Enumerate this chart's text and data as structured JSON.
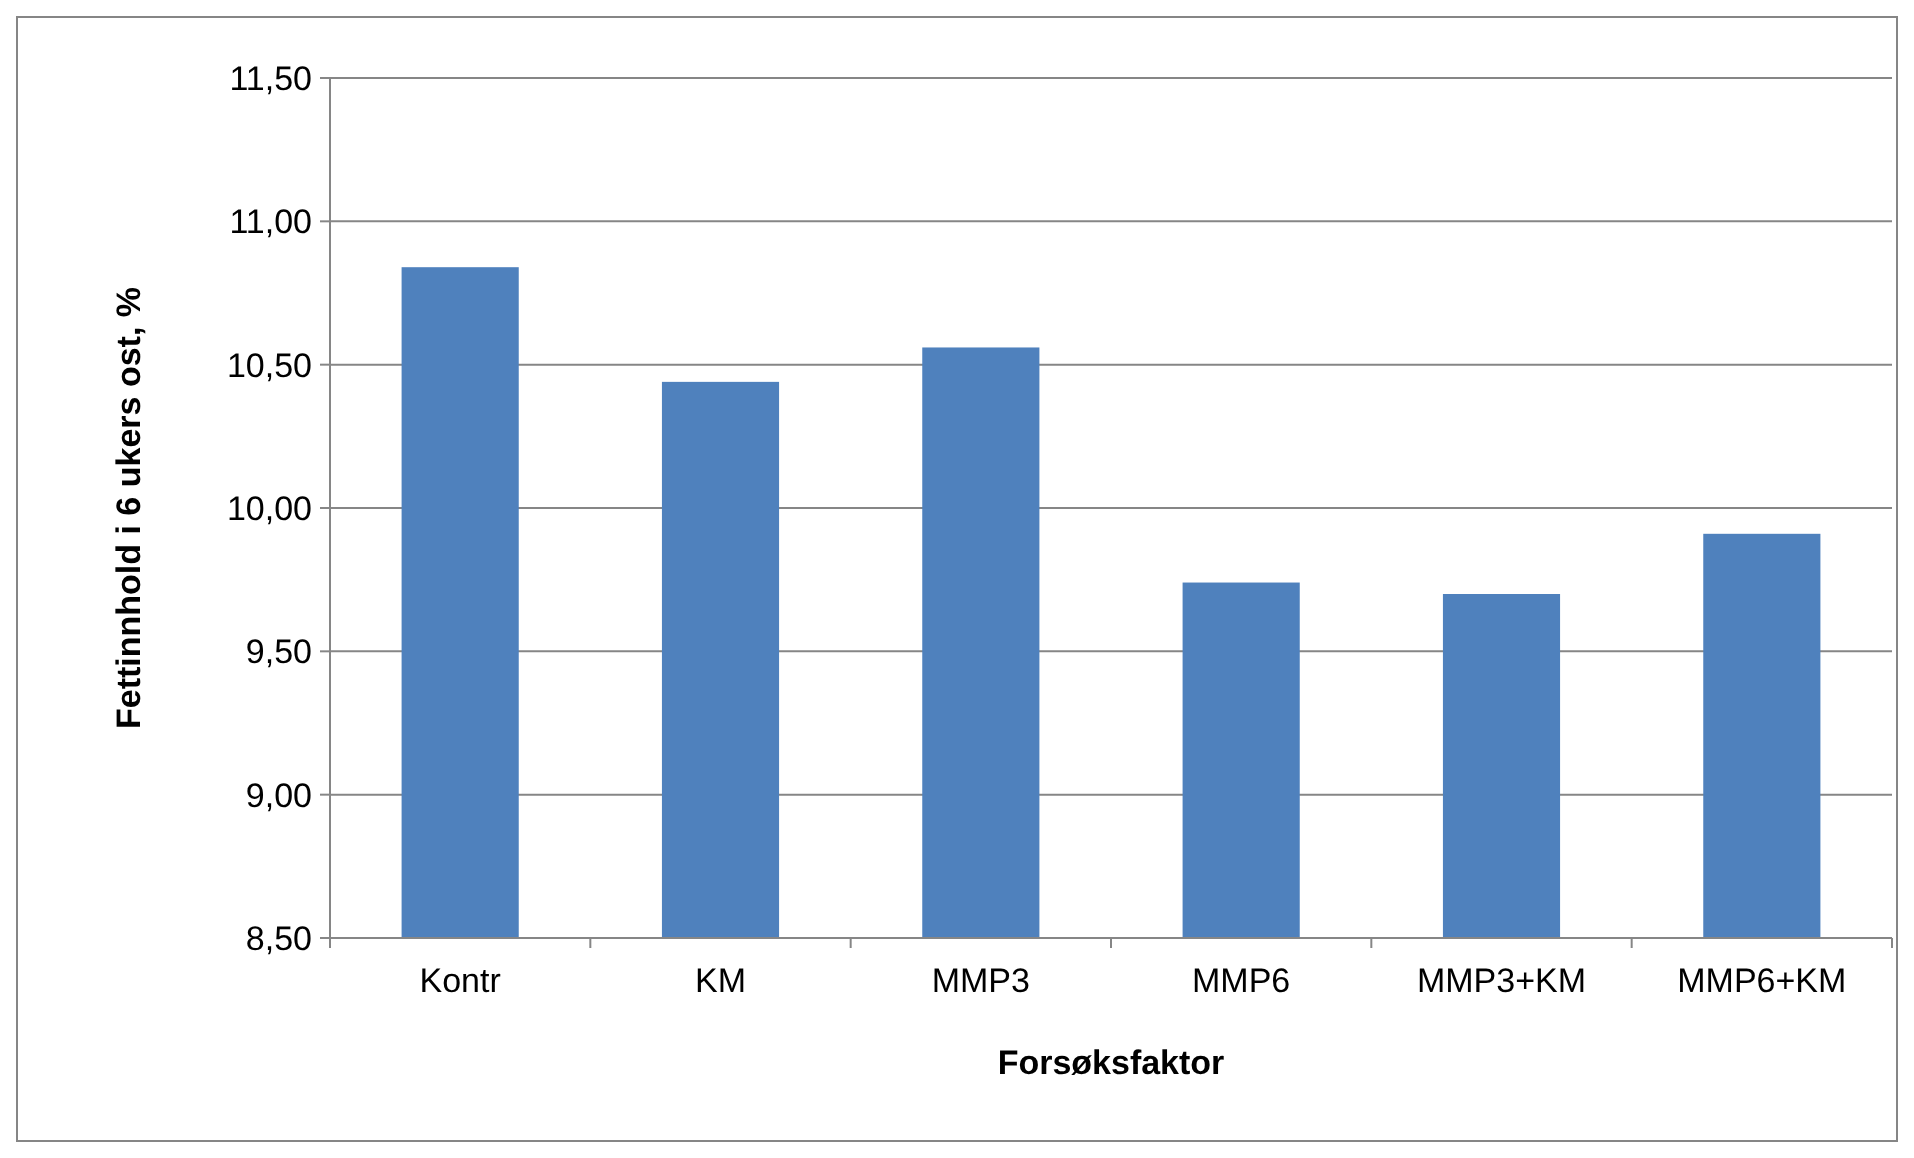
{
  "chart_data": {
    "type": "bar",
    "xlabel": "Forsøksfaktor",
    "ylabel": "Fettinnhold i 6 ukers ost, %",
    "categories": [
      "Kontr",
      "KM",
      "MMP3",
      "MMP6",
      "MMP3+KM",
      "MMP6+KM"
    ],
    "values": [
      10.84,
      10.44,
      10.56,
      9.74,
      9.7,
      9.91
    ],
    "color": "#4f81bd",
    "ylim": [
      8.5,
      11.5
    ],
    "yticks": [
      {
        "value": 8.5,
        "label": "8,50"
      },
      {
        "value": 9,
        "label": "9,00"
      },
      {
        "value": 9.5,
        "label": "9,50"
      },
      {
        "value": 10,
        "label": "10,00"
      },
      {
        "value": 10.5,
        "label": "10,50"
      },
      {
        "value": 11,
        "label": "11,00"
      },
      {
        "value": 11.5,
        "label": "11,50"
      }
    ],
    "grid": "y"
  }
}
